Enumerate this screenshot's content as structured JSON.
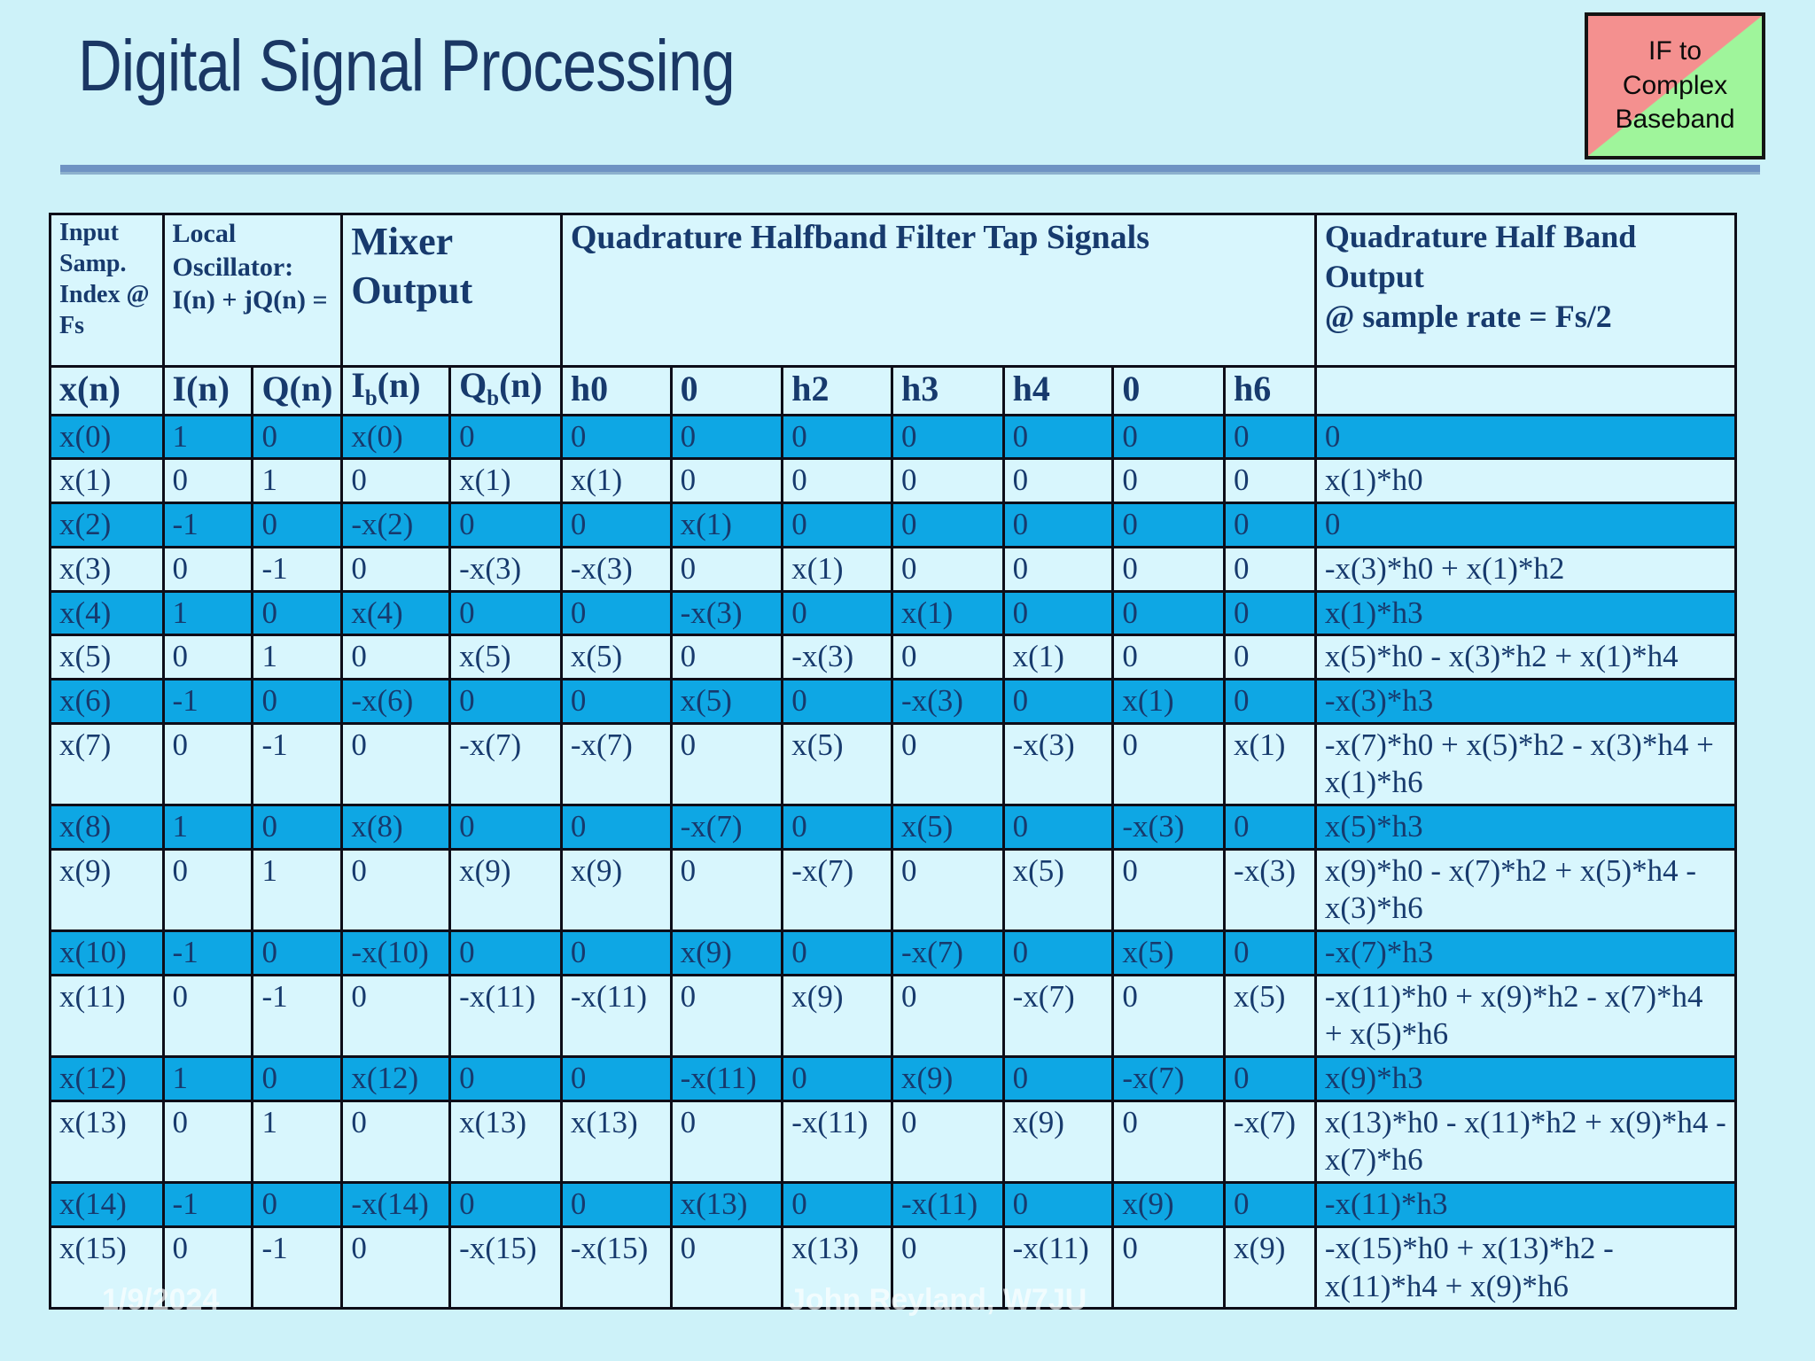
{
  "slide": {
    "title": "Digital Signal Processing",
    "badge_text": "IF to\nComplex\nBaseband",
    "footer": {
      "date": "1/9/2024",
      "credit": "John Reyland, W7JU"
    }
  },
  "colors": {
    "slide_background": "#cdf2f9",
    "cell_background": "#d8f6fd",
    "highlight_row": "#0ea7e4",
    "text_navy": "#173a6d",
    "rule_blue": "#6f93c3",
    "badge_red": "#f4908f",
    "badge_green": "#9ff59b"
  },
  "table": {
    "group_headers": [
      {
        "label": "Input Samp. Index @ Fs",
        "span": "1"
      },
      {
        "label": "Local Oscillator:\nI(n) + jQ(n) =",
        "span": "2"
      },
      {
        "label": "Mixer Output",
        "span": "2"
      },
      {
        "label": "Quadrature Halfband Filter Tap Signals",
        "span": "7"
      },
      {
        "label": "Quadrature Half Band Output\n@ sample rate = Fs/2",
        "span": "1"
      }
    ],
    "column_headers": [
      {
        "pre": "x(n)",
        "sub": "",
        "post": ""
      },
      {
        "pre": "I(n)",
        "sub": "",
        "post": ""
      },
      {
        "pre": "Q(n)",
        "sub": "",
        "post": ""
      },
      {
        "pre": "I",
        "sub": "b",
        "post": "(n)"
      },
      {
        "pre": "Q",
        "sub": "b",
        "post": "(n)"
      },
      {
        "pre": "h0",
        "sub": "",
        "post": ""
      },
      {
        "pre": "0",
        "sub": "",
        "post": ""
      },
      {
        "pre": "h2",
        "sub": "",
        "post": ""
      },
      {
        "pre": "h3",
        "sub": "",
        "post": ""
      },
      {
        "pre": "h4",
        "sub": "",
        "post": ""
      },
      {
        "pre": "0",
        "sub": "",
        "post": ""
      },
      {
        "pre": "h6",
        "sub": "",
        "post": ""
      },
      {
        "pre": "",
        "sub": "",
        "post": ""
      }
    ],
    "col_widths_pct": [
      6.7,
      5.3,
      5.3,
      6.4,
      6.6,
      6.5,
      6.6,
      6.5,
      6.6,
      6.5,
      6.6,
      5.4,
      24.9
    ],
    "rows": [
      {
        "highlight": true,
        "cells": [
          "x(0)",
          "1",
          "0",
          "x(0)",
          "0",
          "0",
          "0",
          "0",
          "0",
          "0",
          "0",
          "0",
          "0"
        ]
      },
      {
        "highlight": false,
        "cells": [
          "x(1)",
          "0",
          "1",
          "0",
          "x(1)",
          "x(1)",
          "0",
          "0",
          "0",
          "0",
          "0",
          "0",
          "x(1)*h0"
        ]
      },
      {
        "highlight": true,
        "cells": [
          "x(2)",
          "-1",
          "0",
          "-x(2)",
          "0",
          "0",
          "x(1)",
          "0",
          "0",
          "0",
          "0",
          "0",
          "0"
        ]
      },
      {
        "highlight": false,
        "cells": [
          "x(3)",
          "0",
          "-1",
          "0",
          "-x(3)",
          "-x(3)",
          "0",
          "x(1)",
          "0",
          "0",
          "0",
          "0",
          "-x(3)*h0 + x(1)*h2"
        ]
      },
      {
        "highlight": true,
        "cells": [
          "x(4)",
          "1",
          "0",
          "x(4)",
          "0",
          "0",
          "-x(3)",
          "0",
          "x(1)",
          "0",
          "0",
          "0",
          "x(1)*h3"
        ]
      },
      {
        "highlight": false,
        "cells": [
          "x(5)",
          "0",
          "1",
          "0",
          "x(5)",
          "x(5)",
          "0",
          "-x(3)",
          "0",
          "x(1)",
          "0",
          "0",
          "x(5)*h0 - x(3)*h2 + x(1)*h4"
        ]
      },
      {
        "highlight": true,
        "cells": [
          "x(6)",
          "-1",
          "0",
          "-x(6)",
          "0",
          "0",
          "x(5)",
          "0",
          "-x(3)",
          "0",
          "x(1)",
          "0",
          "-x(3)*h3"
        ]
      },
      {
        "highlight": false,
        "cells": [
          "x(7)",
          "0",
          "-1",
          "0",
          "-x(7)",
          "-x(7)",
          "0",
          "x(5)",
          "0",
          "-x(3)",
          "0",
          "x(1)",
          "-x(7)*h0 + x(5)*h2 - x(3)*h4 + x(1)*h6"
        ]
      },
      {
        "highlight": true,
        "cells": [
          "x(8)",
          "1",
          "0",
          "x(8)",
          "0",
          "0",
          "-x(7)",
          "0",
          "x(5)",
          "0",
          "-x(3)",
          "0",
          "x(5)*h3"
        ]
      },
      {
        "highlight": false,
        "cells": [
          "x(9)",
          "0",
          "1",
          "0",
          "x(9)",
          "x(9)",
          "0",
          "-x(7)",
          "0",
          "x(5)",
          "0",
          "-x(3)",
          "x(9)*h0 - x(7)*h2 + x(5)*h4 - x(3)*h6"
        ]
      },
      {
        "highlight": true,
        "cells": [
          "x(10)",
          "-1",
          "0",
          "-x(10)",
          "0",
          "0",
          "x(9)",
          "0",
          "-x(7)",
          "0",
          "x(5)",
          "0",
          "-x(7)*h3"
        ]
      },
      {
        "highlight": false,
        "cells": [
          "x(11)",
          "0",
          "-1",
          "0",
          "-x(11)",
          "-x(11)",
          "0",
          "x(9)",
          "0",
          "-x(7)",
          "0",
          "x(5)",
          "-x(11)*h0 + x(9)*h2 - x(7)*h4 + x(5)*h6"
        ]
      },
      {
        "highlight": true,
        "cells": [
          "x(12)",
          "1",
          "0",
          "x(12)",
          "0",
          "0",
          "-x(11)",
          "0",
          "x(9)",
          "0",
          "-x(7)",
          "0",
          "x(9)*h3"
        ]
      },
      {
        "highlight": false,
        "cells": [
          "x(13)",
          "0",
          "1",
          "0",
          "x(13)",
          "x(13)",
          "0",
          "-x(11)",
          "0",
          "x(9)",
          "0",
          "-x(7)",
          "x(13)*h0 - x(11)*h2 + x(9)*h4 - x(7)*h6"
        ]
      },
      {
        "highlight": true,
        "cells": [
          "x(14)",
          "-1",
          "0",
          "-x(14)",
          "0",
          "0",
          "x(13)",
          "0",
          "-x(11)",
          "0",
          "x(9)",
          "0",
          "-x(11)*h3"
        ]
      },
      {
        "highlight": false,
        "cells": [
          "x(15)",
          "0",
          "-1",
          "0",
          "-x(15)",
          "-x(15)",
          "0",
          "x(13)",
          "0",
          "-x(11)",
          "0",
          "x(9)",
          "-x(15)*h0 + x(13)*h2 - x(11)*h4 + x(9)*h6"
        ]
      }
    ]
  }
}
